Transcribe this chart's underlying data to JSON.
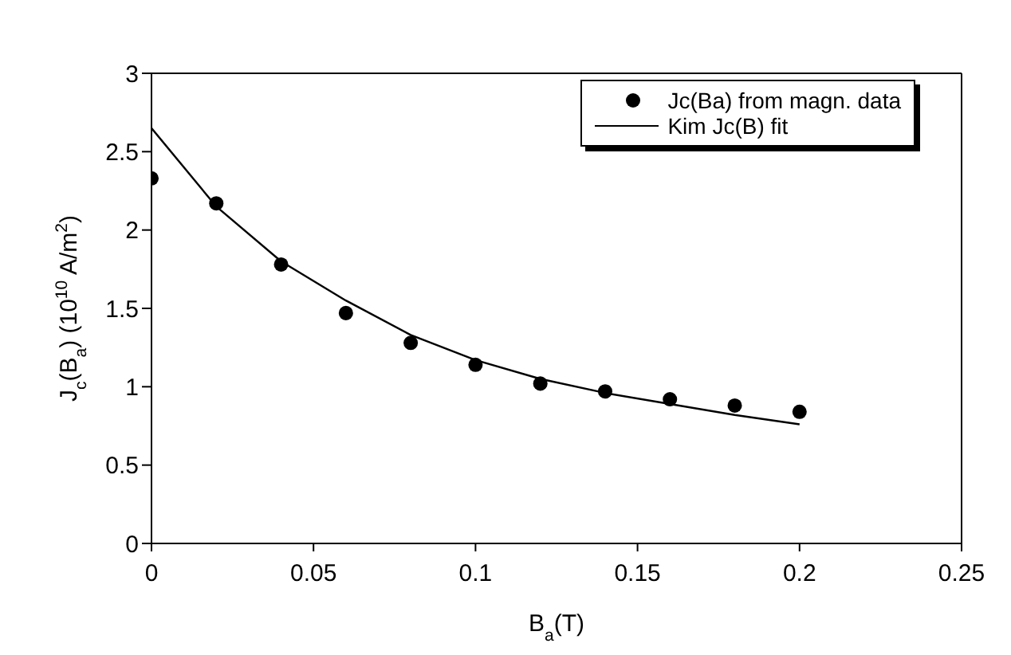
{
  "chart_data": {
    "type": "scatter",
    "xlabel": "B$_{a}$(T)",
    "ylabel": "J$_{c}$(B$_{a}$) (10$^{10}$ A/m$^{2}$)",
    "xlim": [
      0,
      0.25
    ],
    "xticks": [
      0,
      0.05,
      0.1,
      0.15,
      0.2,
      0.25
    ],
    "ylim": [
      0,
      3
    ],
    "yticks": [
      0,
      0.5,
      1,
      1.5,
      2,
      2.5,
      3
    ],
    "legend": "top right",
    "series": [
      {
        "name": "Jc(Ba) from magn. data",
        "marker": "circle",
        "color": "#000000",
        "x": [
          0,
          0.02,
          0.04,
          0.06,
          0.08,
          0.1,
          0.12,
          0.14,
          0.16,
          0.18,
          0.2
        ],
        "values": [
          2.33,
          2.17,
          1.78,
          1.47,
          1.28,
          1.14,
          1.02,
          0.97,
          0.92,
          0.88,
          0.84
        ]
      },
      {
        "name": "Kim Jc(B) fit",
        "type": "line",
        "line_style": "solid",
        "color": "#000000",
        "x": [
          0,
          0.02,
          0.04,
          0.06,
          0.08,
          0.1,
          0.12,
          0.14,
          0.16,
          0.18,
          0.2
        ],
        "values": [
          2.65,
          2.15,
          1.8,
          1.55,
          1.33,
          1.17,
          1.05,
          0.96,
          0.89,
          0.82,
          0.76
        ]
      }
    ]
  }
}
